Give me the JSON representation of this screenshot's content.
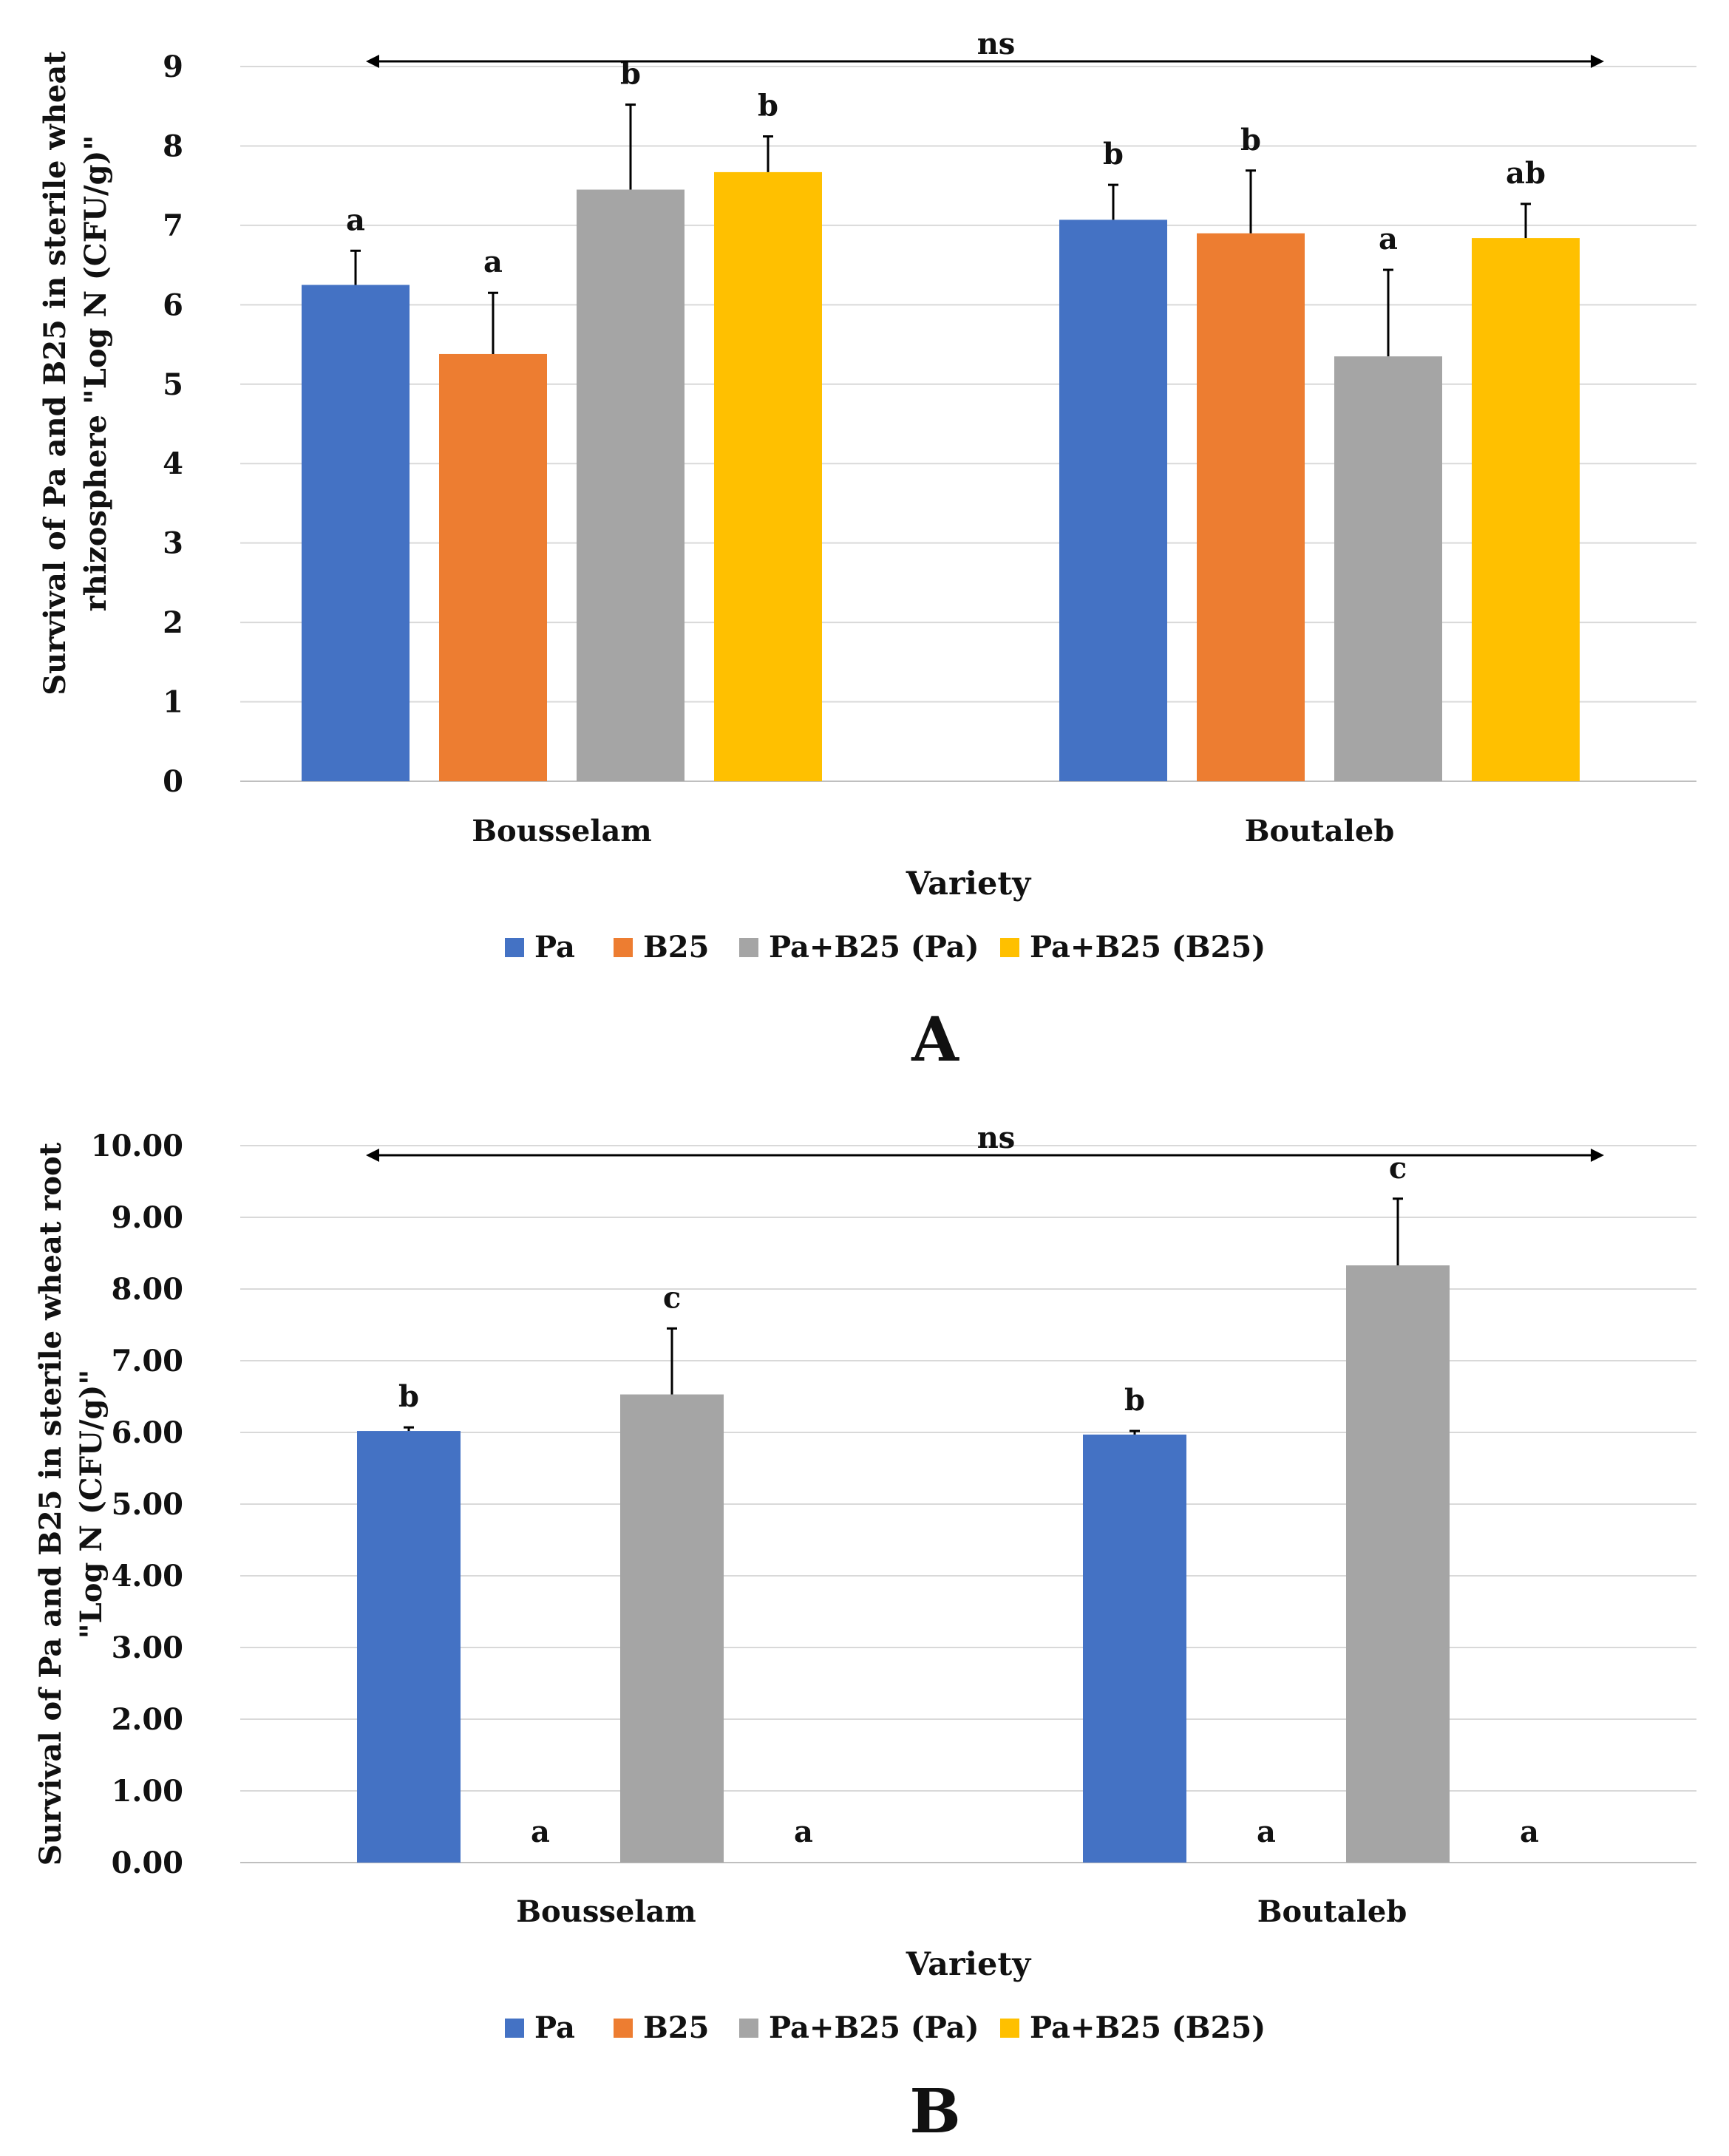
{
  "chart_data": [
    {
      "type": "bar",
      "panel_label": "A",
      "title": "",
      "xlabel": "Variety",
      "ylabel_lines": [
        "Survival of  Pa and B25 in sterile wheat",
        "rhizosphere \"Log N (CFU/g)\""
      ],
      "categories": [
        "Bousselam",
        "Boutaleb"
      ],
      "ylim": [
        0,
        9
      ],
      "yticks": [
        "0",
        "1",
        "2",
        "3",
        "4",
        "5",
        "6",
        "7",
        "8",
        "9"
      ],
      "grid": true,
      "legend_position": "bottom",
      "annotation": "ns",
      "series": [
        {
          "name": "Pa",
          "color": "#4472C4",
          "values": [
            6.25,
            7.07
          ],
          "errors": [
            0.43,
            0.44
          ],
          "letters": [
            "a",
            "b"
          ]
        },
        {
          "name": "B25",
          "color": "#ED7D31",
          "values": [
            5.38,
            6.9
          ],
          "errors": [
            0.77,
            0.79
          ],
          "letters": [
            "a",
            "b"
          ]
        },
        {
          "name": "Pa+B25 (Pa)",
          "color": "#A5A5A5",
          "values": [
            7.45,
            5.35
          ],
          "errors": [
            1.07,
            1.09
          ],
          "letters": [
            "b",
            "a"
          ]
        },
        {
          "name": "Pa+B25 (B25)",
          "color": "#FFC000",
          "values": [
            7.67,
            6.84
          ],
          "errors": [
            0.45,
            0.43
          ],
          "letters": [
            "b",
            "ab"
          ]
        }
      ]
    },
    {
      "type": "bar",
      "panel_label": "B",
      "title": "",
      "xlabel": "Variety",
      "ylabel_lines": [
        "Survival of  Pa and B25 in sterile wheat root",
        "\"Log N (CFU/g)\""
      ],
      "categories": [
        "Bousselam",
        "Boutaleb"
      ],
      "ylim": [
        0,
        10
      ],
      "yticks": [
        "0.00",
        "1.00",
        "2.00",
        "3.00",
        "4.00",
        "5.00",
        "6.00",
        "7.00",
        "8.00",
        "9.00",
        "10.00"
      ],
      "grid": true,
      "legend_position": "bottom",
      "annotation": "ns",
      "series": [
        {
          "name": "Pa",
          "color": "#4472C4",
          "values": [
            6.02,
            5.97
          ],
          "errors": [
            0.05,
            0.05
          ],
          "letters": [
            "b",
            "b"
          ]
        },
        {
          "name": "B25",
          "color": "#ED7D31",
          "values": [
            0,
            0
          ],
          "errors": [
            0,
            0
          ],
          "letters": [
            "a",
            "a"
          ]
        },
        {
          "name": "Pa+B25 (Pa)",
          "color": "#A5A5A5",
          "values": [
            6.53,
            8.33
          ],
          "errors": [
            0.92,
            0.93
          ],
          "letters": [
            "c",
            "c"
          ]
        },
        {
          "name": "Pa+B25 (B25)",
          "color": "#FFC000",
          "values": [
            0,
            0
          ],
          "errors": [
            0,
            0
          ],
          "letters": [
            "a",
            "a"
          ]
        }
      ]
    }
  ]
}
